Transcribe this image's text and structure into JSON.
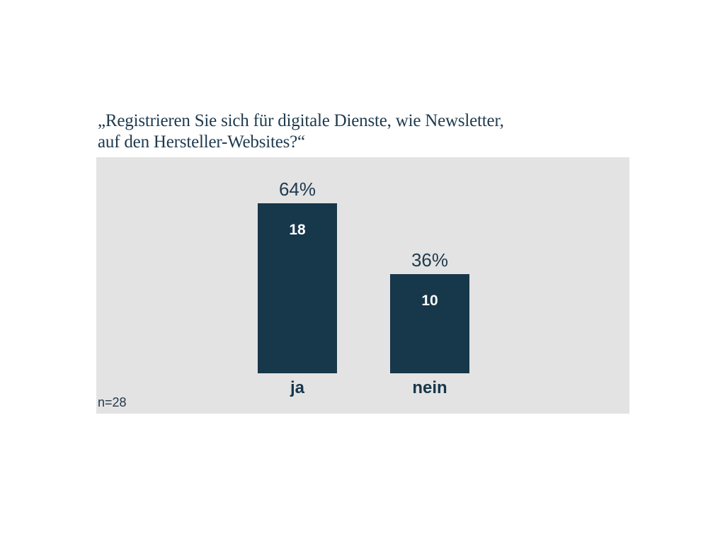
{
  "title": {
    "line1": "„Registrieren Sie sich für digitale Dienste, wie Newsletter,",
    "line2": "auf den Hersteller-Websites?“"
  },
  "footnote": "n=28",
  "colors": {
    "bar": "#17374a",
    "text": "#1e3a4e",
    "value_label": "#ffffff",
    "plot_background": "#e3e3e3",
    "page_background": "#ffffff"
  },
  "chart_data": {
    "type": "bar",
    "title": "„Registrieren Sie sich für digitale Dienste, wie Newsletter, auf den Hersteller-Websites?“",
    "categories": [
      "ja",
      "nein"
    ],
    "values": [
      18,
      10
    ],
    "percent_labels": [
      "64%",
      "36%"
    ],
    "percents": [
      64,
      36
    ],
    "sample_size": 28,
    "xlabel": "",
    "ylabel": "",
    "grid": false,
    "legend": false,
    "ylim": [
      0,
      20
    ]
  }
}
